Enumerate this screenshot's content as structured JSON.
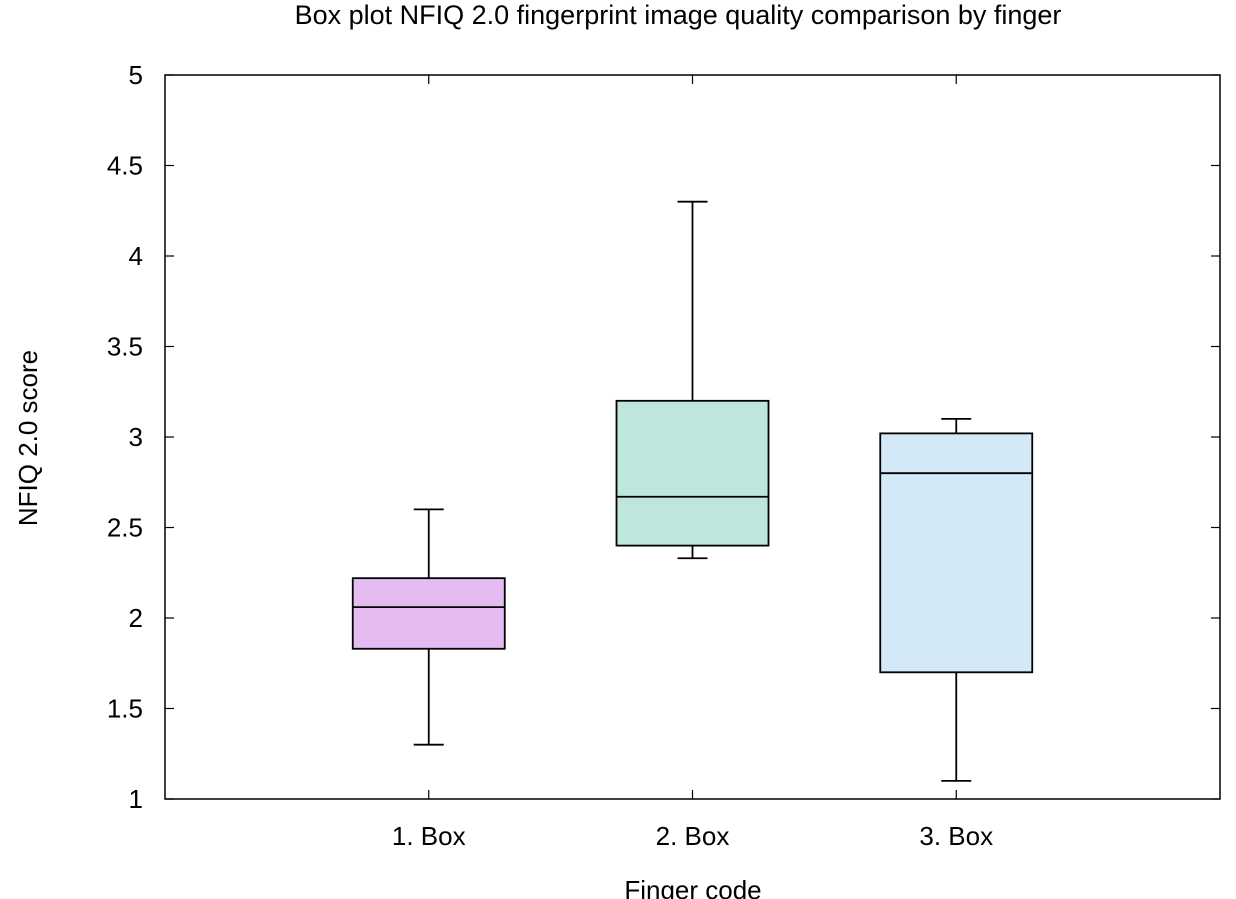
{
  "chart_data": {
    "type": "box",
    "title": "Box plot NFIQ 2.0 fingerprint image quality comparison by finger",
    "xlabel": "Finger code",
    "ylabel": "NFIQ 2.0 score",
    "ylim": [
      1,
      5
    ],
    "yticks": [
      1,
      1.5,
      2,
      2.5,
      3,
      3.5,
      4,
      4.5,
      5
    ],
    "ytick_labels": [
      "1",
      "1.5",
      "2",
      "2.5",
      "3",
      "3.5",
      "4",
      "4.5",
      "5"
    ],
    "grid": false,
    "legend": "none",
    "categories": [
      "1. Box",
      "2. Box",
      "3. Box"
    ],
    "boxes": [
      {
        "category": "1. Box",
        "min": 1.3,
        "q1": 1.83,
        "median": 2.06,
        "q3": 2.22,
        "max": 2.6,
        "color": "#e4bcf2"
      },
      {
        "category": "2. Box",
        "min": 2.33,
        "q1": 2.4,
        "median": 2.67,
        "q3": 3.2,
        "max": 4.3,
        "color": "#bde6dc"
      },
      {
        "category": "3. Box",
        "min": 1.1,
        "q1": 1.7,
        "median": 2.8,
        "q3": 3.02,
        "max": 3.1,
        "color": "#d3e9f7"
      }
    ]
  }
}
